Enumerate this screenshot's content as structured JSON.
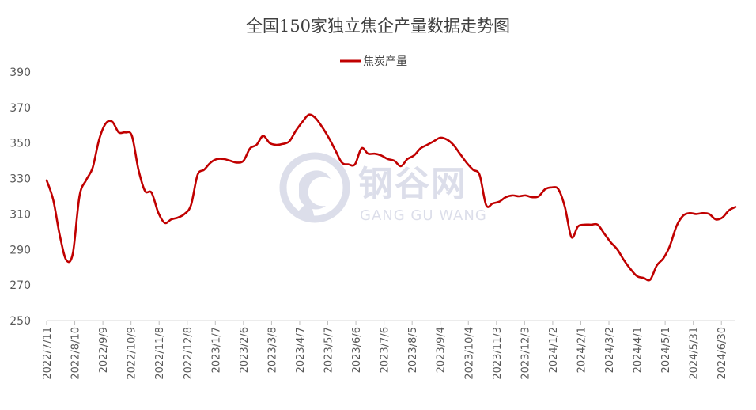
{
  "chart_data": {
    "type": "line",
    "title": "全国150家独立焦企产量数据走势图",
    "series": [
      {
        "name": "焦炭产量",
        "color": "#c00000",
        "points": [
          [
            "2022-07-11",
            329
          ],
          [
            "2022-07-18",
            318
          ],
          [
            "2022-07-25",
            298
          ],
          [
            "2022-08-01",
            284
          ],
          [
            "2022-08-08",
            288
          ],
          [
            "2022-08-15",
            320
          ],
          [
            "2022-08-22",
            329
          ],
          [
            "2022-08-29",
            336
          ],
          [
            "2022-09-05",
            352
          ],
          [
            "2022-09-12",
            361
          ],
          [
            "2022-09-19",
            362
          ],
          [
            "2022-09-26",
            356
          ],
          [
            "2022-10-03",
            356
          ],
          [
            "2022-10-10",
            354
          ],
          [
            "2022-10-17",
            335
          ],
          [
            "2022-10-24",
            323
          ],
          [
            "2022-10-31",
            322
          ],
          [
            "2022-11-07",
            311
          ],
          [
            "2022-11-14",
            305
          ],
          [
            "2022-11-21",
            307
          ],
          [
            "2022-11-28",
            308
          ],
          [
            "2022-12-05",
            310
          ],
          [
            "2022-12-12",
            315
          ],
          [
            "2022-12-19",
            332
          ],
          [
            "2022-12-26",
            335
          ],
          [
            "2023-01-02",
            339
          ],
          [
            "2023-01-09",
            341
          ],
          [
            "2023-01-16",
            341
          ],
          [
            "2023-01-23",
            340
          ],
          [
            "2023-01-30",
            339
          ],
          [
            "2023-02-06",
            340
          ],
          [
            "2023-02-13",
            347
          ],
          [
            "2023-02-20",
            349
          ],
          [
            "2023-02-27",
            354
          ],
          [
            "2023-03-06",
            350
          ],
          [
            "2023-03-13",
            349
          ],
          [
            "2023-03-20",
            349.5
          ],
          [
            "2023-03-27",
            351
          ],
          [
            "2023-04-03",
            357
          ],
          [
            "2023-04-10",
            362
          ],
          [
            "2023-04-17",
            366
          ],
          [
            "2023-04-24",
            364
          ],
          [
            "2023-05-01",
            359
          ],
          [
            "2023-05-08",
            353
          ],
          [
            "2023-05-15",
            346
          ],
          [
            "2023-05-22",
            339
          ],
          [
            "2023-05-29",
            338
          ],
          [
            "2023-06-05",
            338
          ],
          [
            "2023-06-12",
            347
          ],
          [
            "2023-06-19",
            344
          ],
          [
            "2023-06-26",
            344
          ],
          [
            "2023-07-03",
            343
          ],
          [
            "2023-07-10",
            341
          ],
          [
            "2023-07-17",
            340
          ],
          [
            "2023-07-24",
            337
          ],
          [
            "2023-07-31",
            341
          ],
          [
            "2023-08-07",
            343
          ],
          [
            "2023-08-14",
            347
          ],
          [
            "2023-08-21",
            349
          ],
          [
            "2023-08-28",
            351
          ],
          [
            "2023-09-04",
            353
          ],
          [
            "2023-09-11",
            352
          ],
          [
            "2023-09-18",
            349
          ],
          [
            "2023-09-25",
            344
          ],
          [
            "2023-10-02",
            339
          ],
          [
            "2023-10-09",
            335
          ],
          [
            "2023-10-16",
            332
          ],
          [
            "2023-10-23",
            315
          ],
          [
            "2023-10-30",
            316
          ],
          [
            "2023-11-06",
            317
          ],
          [
            "2023-11-13",
            319.5
          ],
          [
            "2023-11-20",
            320.5
          ],
          [
            "2023-11-27",
            320
          ],
          [
            "2023-12-04",
            320.5
          ],
          [
            "2023-12-11",
            319.5
          ],
          [
            "2023-12-18",
            320
          ],
          [
            "2023-12-25",
            324
          ],
          [
            "2024-01-01",
            325
          ],
          [
            "2024-01-08",
            324
          ],
          [
            "2024-01-15",
            314
          ],
          [
            "2024-01-22",
            297
          ],
          [
            "2024-01-29",
            303
          ],
          [
            "2024-02-05",
            304
          ],
          [
            "2024-02-12",
            304
          ],
          [
            "2024-02-19",
            304
          ],
          [
            "2024-02-26",
            299
          ],
          [
            "2024-03-04",
            294
          ],
          [
            "2024-03-11",
            290
          ],
          [
            "2024-03-18",
            284
          ],
          [
            "2024-03-25",
            279
          ],
          [
            "2024-04-01",
            275
          ],
          [
            "2024-04-08",
            274
          ],
          [
            "2024-04-15",
            273
          ],
          [
            "2024-04-22",
            281
          ],
          [
            "2024-04-29",
            285
          ],
          [
            "2024-05-06",
            292
          ],
          [
            "2024-05-13",
            303
          ],
          [
            "2024-05-20",
            309
          ],
          [
            "2024-05-27",
            310.5
          ],
          [
            "2024-06-03",
            310
          ],
          [
            "2024-06-10",
            310.5
          ],
          [
            "2024-06-17",
            310
          ],
          [
            "2024-06-24",
            307
          ],
          [
            "2024-07-01",
            308
          ],
          [
            "2024-07-08",
            312
          ],
          [
            "2024-07-15",
            314
          ]
        ]
      }
    ],
    "x_tick_labels": [
      "2022/7/11",
      "2022/8/10",
      "2022/9/9",
      "2022/10/9",
      "2022/11/8",
      "2022/12/8",
      "2023/1/7",
      "2023/2/6",
      "2023/3/8",
      "2023/4/7",
      "2023/5/7",
      "2023/6/6",
      "2023/7/6",
      "2023/8/5",
      "2023/9/4",
      "2023/10/4",
      "2023/11/3",
      "2023/12/3",
      "2024/1/2",
      "2024/2/1",
      "2024/3/2",
      "2024/4/1",
      "2024/5/1",
      "2024/5/31",
      "2024/6/30"
    ],
    "x_tick_interval_days": 30,
    "x_start": "2022-07-11",
    "x_end": "2024-07-15",
    "y_ticks": [
      250,
      270,
      290,
      310,
      330,
      350,
      370,
      390
    ],
    "ylim": [
      250,
      390
    ],
    "grid": false,
    "legend_position": "top-center"
  },
  "watermark": {
    "cn": "钢谷网",
    "en": "GANG GU WANG"
  }
}
